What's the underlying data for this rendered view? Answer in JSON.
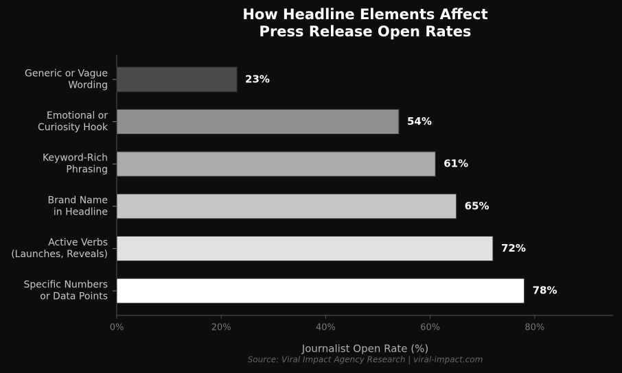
{
  "chart_data": {
    "type": "bar",
    "orientation": "horizontal",
    "title": [
      "How Headline Elements Affect",
      "Press Release Open Rates"
    ],
    "x_label": "Journalist Open Rate (%)",
    "source": "Source: Viral Impact Agency Research  |  viral-impact.com",
    "categories": [
      [
        "Generic or Vague",
        "Wording"
      ],
      [
        "Emotional or",
        "Curiosity Hook"
      ],
      [
        "Keyword-Rich",
        "Phrasing"
      ],
      [
        "Brand Name",
        "in Headline"
      ],
      [
        "Active Verbs",
        "(Launches, Reveals)"
      ],
      [
        "Specific Numbers",
        "or Data Points"
      ]
    ],
    "values": [
      23,
      54,
      61,
      65,
      72,
      78
    ],
    "value_labels": [
      "23%",
      "54%",
      "61%",
      "65%",
      "72%",
      "78%"
    ],
    "colors": [
      "#4a4a4a",
      "#8f8f8d",
      "#aaaaaa",
      "#c5c5c5",
      "#e0e0e0",
      "#ffffff"
    ],
    "xlim": [
      0,
      95
    ],
    "xticks": [
      {
        "value": 0,
        "label": "0%"
      },
      {
        "value": 20,
        "label": "20%"
      },
      {
        "value": 40,
        "label": "40%"
      },
      {
        "value": 60,
        "label": "60%"
      },
      {
        "value": 80,
        "label": "80%"
      }
    ]
  }
}
